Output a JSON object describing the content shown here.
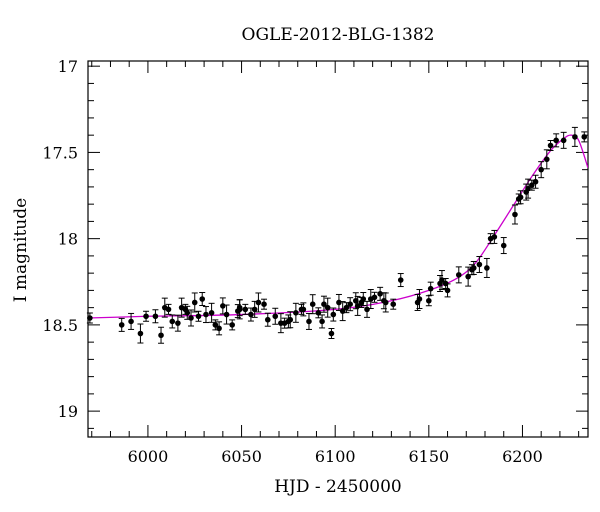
{
  "chart_data": {
    "type": "scatter",
    "title": "OGLE-2012-BLG-1382",
    "xlabel": "HJD - 2450000",
    "ylabel": "I magnitude",
    "xlim": [
      5968,
      6235
    ],
    "ylim": [
      19.15,
      16.97
    ],
    "y_inverted": true,
    "grid": false,
    "x_ticks": [
      6000,
      6050,
      6100,
      6150,
      6200
    ],
    "x_tick_labels": [
      "6000",
      "6050",
      "6100",
      "6150",
      "6200"
    ],
    "y_ticks": [
      17,
      17.5,
      18,
      18.5,
      19
    ],
    "y_tick_labels": [
      "17",
      "17.5",
      "18",
      "18.5",
      "19"
    ],
    "colors": {
      "points": "#000000",
      "model": "#cc00cc",
      "axes": "#000000"
    },
    "series": [
      {
        "type": "scatter_with_errorbars",
        "x": [
          5969,
          5986,
          5991,
          5996,
          5999,
          6004,
          6007,
          6009,
          6011,
          6013,
          6016,
          6018,
          6020,
          6021,
          6023,
          6025,
          6027,
          6029,
          6031,
          6034,
          6036,
          6038,
          6040,
          6042,
          6045,
          6048,
          6049,
          6049,
          6052,
          6055,
          6057,
          6059,
          6062,
          6064,
          6068,
          6071,
          6073,
          6075,
          6076,
          6079,
          6082,
          6083,
          6086,
          6088,
          6091,
          6093,
          6094,
          6096,
          6098,
          6099,
          6102,
          6104,
          6106,
          6108,
          6111,
          6112,
          6114,
          6115,
          6117,
          6119,
          6121,
          6124,
          6126,
          6127,
          6131,
          6135,
          6144,
          6145,
          6150,
          6151,
          6156,
          6157,
          6159,
          6160,
          6166,
          6171,
          6173,
          6174,
          6177,
          6181,
          6183,
          6185,
          6190,
          6196,
          6198,
          6199,
          6202,
          6203,
          6205,
          6207,
          6210,
          6213,
          6215,
          6218,
          6222,
          6228,
          6233
        ],
        "y": [
          18.46,
          18.5,
          18.48,
          18.55,
          18.45,
          18.45,
          18.56,
          18.4,
          18.41,
          18.48,
          18.49,
          18.4,
          18.41,
          18.43,
          18.46,
          18.37,
          18.45,
          18.35,
          18.44,
          18.43,
          18.5,
          18.52,
          18.39,
          18.44,
          18.5,
          18.42,
          18.4,
          18.41,
          18.41,
          18.44,
          18.41,
          18.37,
          18.38,
          18.47,
          18.45,
          18.49,
          18.49,
          18.48,
          18.47,
          18.43,
          18.41,
          18.41,
          18.48,
          18.38,
          18.43,
          18.48,
          18.38,
          18.4,
          18.55,
          18.44,
          18.37,
          18.42,
          18.4,
          18.38,
          18.36,
          18.39,
          18.37,
          18.35,
          18.41,
          18.35,
          18.34,
          18.32,
          18.36,
          18.37,
          18.38,
          18.24,
          18.37,
          18.35,
          18.36,
          18.29,
          18.26,
          18.24,
          18.26,
          18.3,
          18.21,
          18.22,
          18.18,
          18.17,
          18.15,
          18.17,
          18.0,
          17.99,
          18.04,
          17.86,
          17.77,
          17.76,
          17.73,
          17.71,
          17.69,
          17.67,
          17.6,
          17.54,
          17.46,
          17.43,
          17.43,
          17.41,
          17.41
        ]
      },
      {
        "type": "line",
        "x": [
          5968,
          6000,
          6050,
          6100,
          6130,
          6150,
          6165,
          6175,
          6185,
          6195,
          6205,
          6215,
          6222,
          6226,
          6230,
          6235
        ],
        "y": [
          18.46,
          18.45,
          18.44,
          18.41,
          18.36,
          18.3,
          18.23,
          18.14,
          17.98,
          17.81,
          17.64,
          17.49,
          17.42,
          17.4,
          17.43,
          17.59
        ]
      }
    ]
  }
}
